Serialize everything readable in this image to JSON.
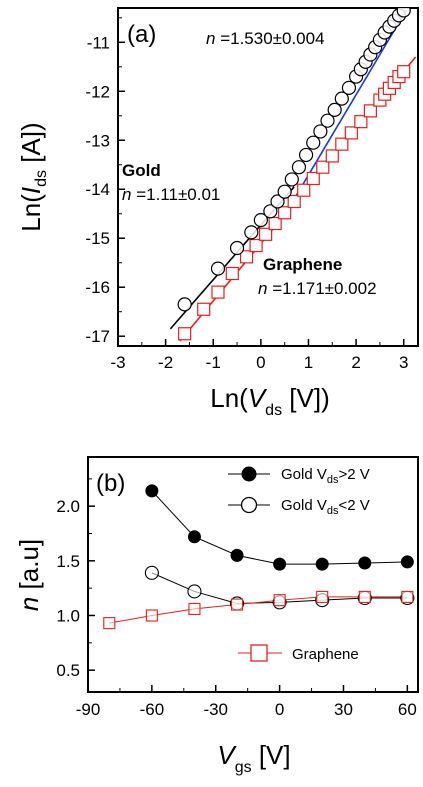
{
  "panel_a": {
    "label": "(a)",
    "annotations": {
      "top": {
        "pre": "n",
        "post": " =1.530±0.004"
      },
      "gold_title": "Gold",
      "gold": {
        "pre": "n",
        "post": " =1.11±0.01"
      },
      "graphene_title": "Graphene",
      "graphene": {
        "pre": "n",
        "post": " =1.171±0.002"
      }
    }
  },
  "panel_b": {
    "label": "(b)",
    "legend": [
      {
        "pre": "Gold V",
        "sub": "ds",
        "post": ">2 V"
      },
      {
        "pre": "Gold V",
        "sub": "ds",
        "post": "<2 V"
      }
    ],
    "legend2": "Graphene"
  },
  "chart_data": [
    {
      "type": "scatter",
      "title": "",
      "xlabel": {
        "pre": "Ln(",
        "var": "V",
        "sub": "ds",
        "post": " [V])"
      },
      "ylabel": {
        "pre": "Ln(",
        "var": "I",
        "sub": "ds",
        "post": " [A])"
      },
      "xlim": [
        -3,
        3.3
      ],
      "ylim": [
        -17.2,
        -10.3
      ],
      "xticks": [
        "-3",
        "-2",
        "-1",
        "0",
        "1",
        "2",
        "3"
      ],
      "yticks": [
        "-17",
        "-16",
        "-15",
        "-14",
        "-13",
        "-12",
        "-11"
      ],
      "colors": {
        "gold": "#000000",
        "graphene": "#e02020",
        "fit_high": "#1a3ccc"
      },
      "series": [
        {
          "marker": "open-circle",
          "x": [
            -1.6,
            -0.9,
            -0.5,
            -0.2,
            0.0,
            0.2,
            0.35,
            0.5,
            0.65,
            0.8,
            0.95,
            1.1,
            1.25,
            1.4,
            1.55,
            1.7,
            1.85,
            2.0,
            2.1,
            2.2,
            2.3,
            2.4,
            2.5,
            2.6,
            2.7,
            2.8,
            2.9,
            3.0
          ],
          "y": [
            -16.35,
            -15.62,
            -15.2,
            -14.88,
            -14.63,
            -14.45,
            -14.25,
            -14.05,
            -13.8,
            -13.55,
            -13.3,
            -13.05,
            -12.82,
            -12.6,
            -12.38,
            -12.15,
            -11.93,
            -11.7,
            -11.55,
            -11.4,
            -11.25,
            -11.1,
            -10.95,
            -10.8,
            -10.68,
            -10.56,
            -10.45,
            -10.35
          ]
        },
        {
          "marker": "open-square",
          "x": [
            -1.6,
            -1.2,
            -0.9,
            -0.6,
            -0.3,
            -0.1,
            0.1,
            0.3,
            0.5,
            0.7,
            0.9,
            1.1,
            1.3,
            1.5,
            1.7,
            1.9,
            2.1,
            2.3,
            2.5,
            2.6,
            2.7,
            2.8,
            2.9,
            3.0
          ],
          "y": [
            -16.95,
            -16.45,
            -16.1,
            -15.72,
            -15.38,
            -15.15,
            -14.92,
            -14.7,
            -14.48,
            -14.25,
            -14.02,
            -13.78,
            -13.55,
            -13.32,
            -13.08,
            -12.85,
            -12.62,
            -12.4,
            -12.18,
            -12.06,
            -11.94,
            -11.82,
            -11.7,
            -11.6
          ]
        }
      ],
      "fits": [
        {
          "x": [
            -1.9,
            0.7
          ],
          "y": [
            -16.85,
            -13.95
          ],
          "color": "gold"
        },
        {
          "x": [
            0.7,
            3.05
          ],
          "y": [
            -14.2,
            -10.35
          ],
          "color": "fit_high"
        },
        {
          "x": [
            -1.7,
            3.25
          ],
          "y": [
            -17.1,
            -11.3
          ],
          "color": "graphene"
        }
      ]
    },
    {
      "type": "line",
      "title": "",
      "xlabel": {
        "var": "V",
        "sub": "gs",
        "post": " [V]"
      },
      "ylabel": {
        "var": "n",
        "post": " [a.u]"
      },
      "xlim": [
        -90,
        65
      ],
      "ylim": [
        0.3,
        2.45
      ],
      "xticks": [
        "-90",
        "-60",
        "-30",
        "0",
        "30",
        "60"
      ],
      "yticks": [
        "0.5",
        "1.0",
        "1.5",
        "2.0"
      ],
      "series": [
        {
          "marker": "filled-circle",
          "x": [
            -60,
            -40,
            -20,
            0,
            20,
            40,
            60
          ],
          "y": [
            2.14,
            1.72,
            1.55,
            1.47,
            1.47,
            1.48,
            1.49
          ]
        },
        {
          "marker": "open-circle",
          "x": [
            -60,
            -40,
            -20,
            0,
            20,
            40,
            60
          ],
          "y": [
            1.39,
            1.22,
            1.11,
            1.12,
            1.14,
            1.16,
            1.16
          ]
        },
        {
          "marker": "open-square",
          "x": [
            -80,
            -60,
            -40,
            -20,
            0,
            20,
            40,
            60
          ],
          "y": [
            0.93,
            1.0,
            1.06,
            1.1,
            1.14,
            1.17,
            1.17,
            1.17
          ]
        }
      ]
    }
  ]
}
